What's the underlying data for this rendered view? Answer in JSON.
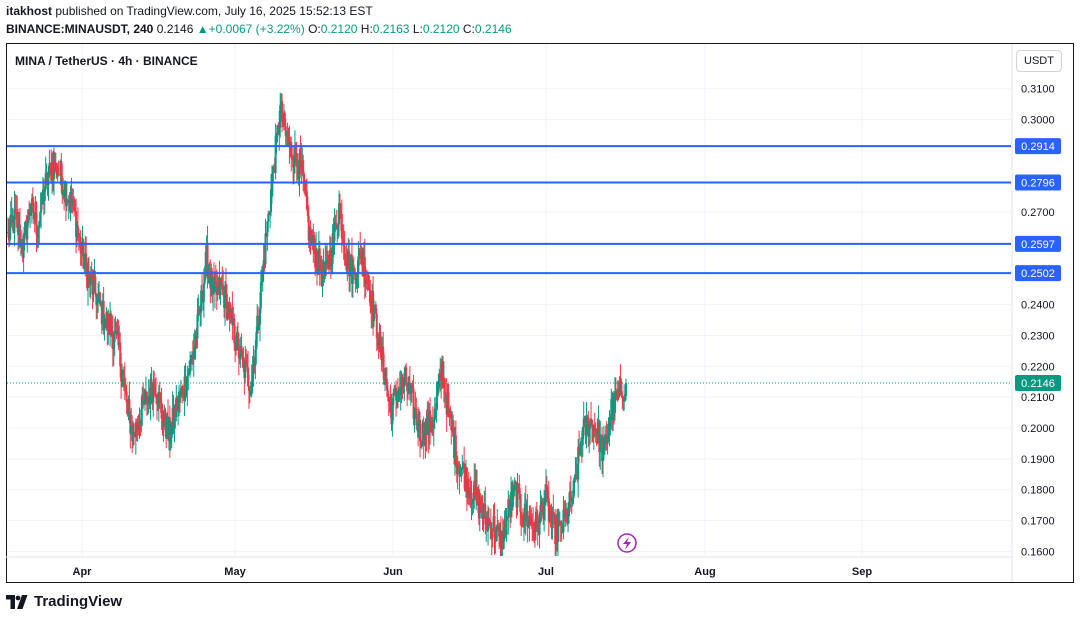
{
  "header": {
    "author": "itakhost",
    "published_text": "published on TradingView.com, July 16, 2025 15:52:13 EST",
    "symbol": "BINANCE:MINAUSDT, 240",
    "last": "0.2146",
    "change": "+0.0067 (+3.22%)",
    "o_label": "O:",
    "o_val": "0.2120",
    "h_label": "H:",
    "h_val": "0.2163",
    "l_label": "L:",
    "l_val": "0.2120",
    "c_label": "C:",
    "c_val": "0.2146"
  },
  "legend_title": "MINA / TetherUS · 4h · BINANCE",
  "currency_button": "USDT",
  "brand": "TradingView",
  "colors": {
    "up": "#089981",
    "down": "#f23645",
    "level": "#2962ff",
    "text": "#131722",
    "grid": "#f0f3fa"
  },
  "chart_data": {
    "type": "candlestick",
    "timeframe": "4h",
    "x_ticks": [
      "Apr",
      "May",
      "Jun",
      "Jul",
      "Aug",
      "Sep"
    ],
    "y_ticks": [
      "0.3100",
      "0.3000",
      "0.2700",
      "0.2400",
      "0.2300",
      "0.2200",
      "0.2100",
      "0.2000",
      "0.1900",
      "0.1800",
      "0.1700",
      "0.1600"
    ],
    "ylim": [
      0.1585,
      0.3245
    ],
    "horizontal_levels": [
      0.2914,
      0.2796,
      0.2597,
      0.2502
    ],
    "last_price": 0.2146,
    "price_path_approx": [
      [
        0.262,
        0.268,
        0.258,
        0.272,
        0.265,
        0.278,
        0.285,
        0.283,
        0.276,
        0.27
      ],
      [
        0.257,
        0.248,
        0.243,
        0.236,
        0.232,
        0.226,
        0.21,
        0.197,
        0.205,
        0.21,
        0.215,
        0.203,
        0.198,
        0.208,
        0.214,
        0.222
      ],
      [
        0.236,
        0.255,
        0.242,
        0.246,
        0.238,
        0.228,
        0.22,
        0.214,
        0.235,
        0.26,
        0.282,
        0.303,
        0.292,
        0.288,
        0.282
      ],
      [
        0.262,
        0.255,
        0.248,
        0.258,
        0.272,
        0.255,
        0.25,
        0.256,
        0.247,
        0.234,
        0.22,
        0.205,
        0.212,
        0.215,
        0.208,
        0.198,
        0.2,
        0.204
      ],
      [
        0.219,
        0.203,
        0.19,
        0.185,
        0.18,
        0.175,
        0.17,
        0.168,
        0.162,
        0.173,
        0.18,
        0.172,
        0.17,
        0.168
      ],
      [
        0.178,
        0.168,
        0.166,
        0.172,
        0.18,
        0.198,
        0.202,
        0.2,
        0.191,
        0.206,
        0.21,
        0.2146
      ]
    ]
  }
}
